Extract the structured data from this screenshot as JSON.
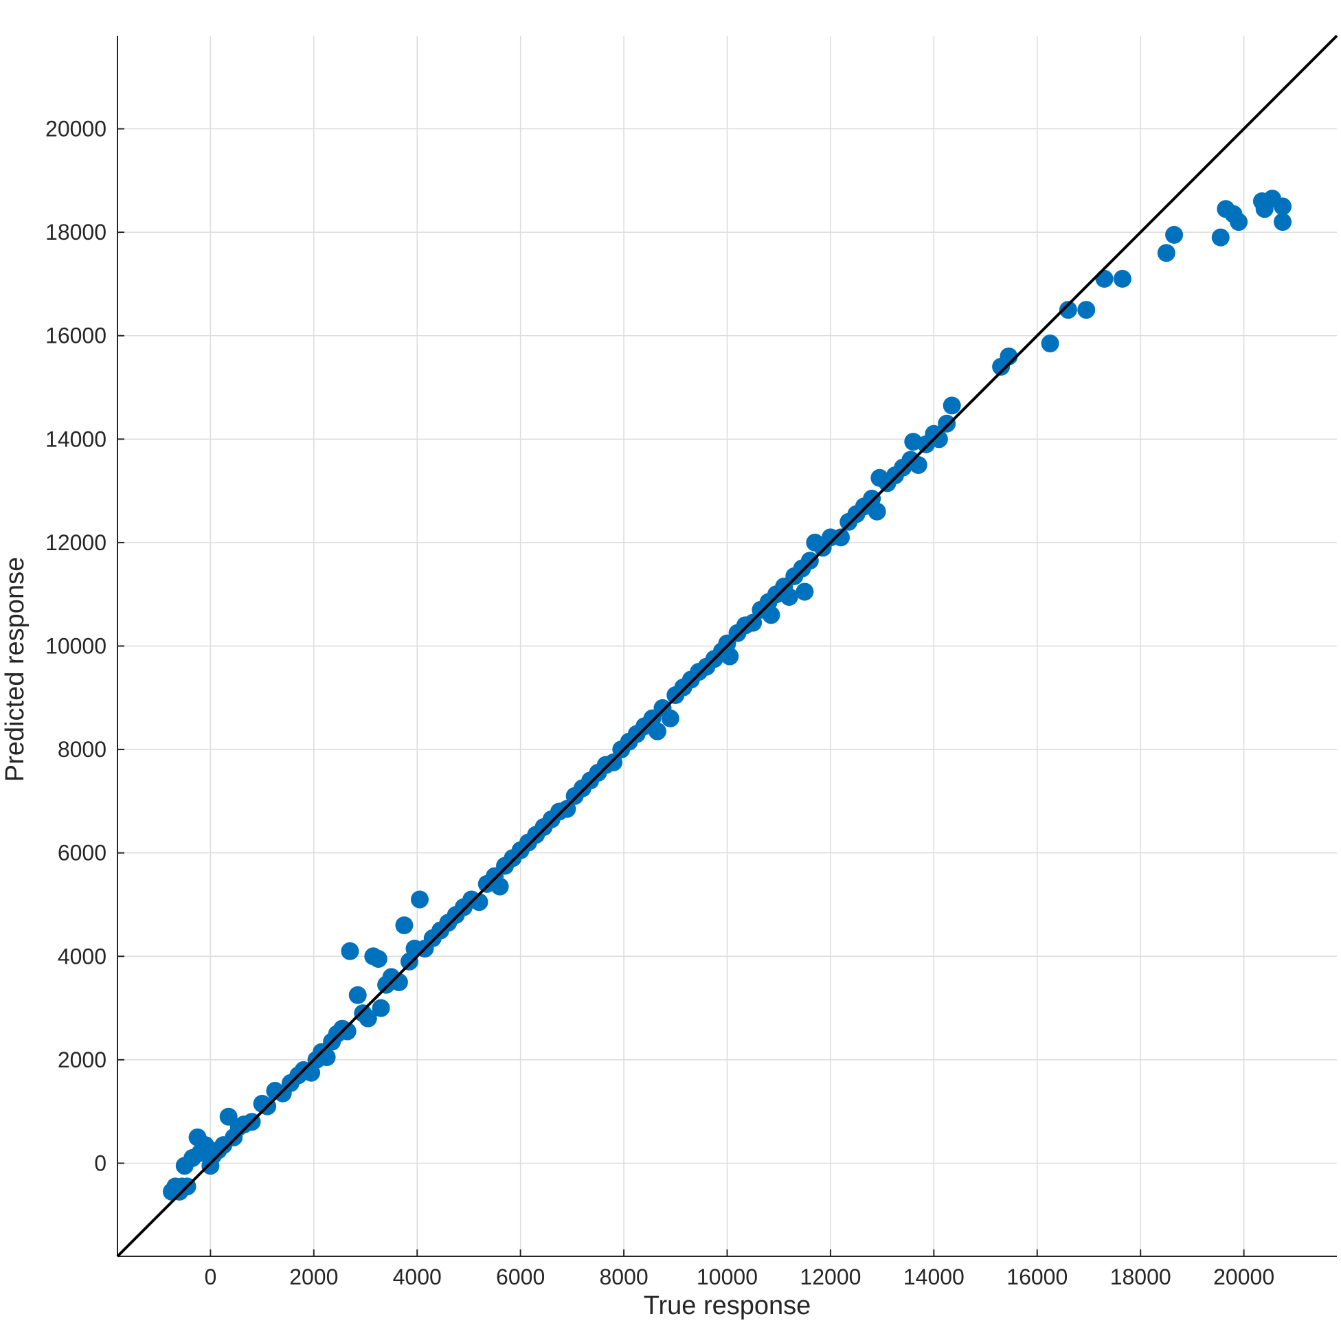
{
  "chart_data": {
    "type": "scatter",
    "title": "",
    "xlabel": "True response",
    "ylabel": "Predicted response",
    "xlim": [
      -1800,
      21800
    ],
    "ylim": [
      -1800,
      21800
    ],
    "xticks": [
      0,
      2000,
      4000,
      6000,
      8000,
      10000,
      12000,
      14000,
      16000,
      18000,
      20000
    ],
    "yticks": [
      0,
      2000,
      4000,
      6000,
      8000,
      10000,
      12000,
      14000,
      16000,
      18000,
      20000
    ],
    "xtick_labels": [
      "0",
      "2000",
      "4000",
      "6000",
      "8000",
      "10000",
      "12000",
      "14000",
      "16000",
      "18000",
      "20000"
    ],
    "ytick_labels": [
      "0",
      "2000",
      "4000",
      "6000",
      "8000",
      "10000",
      "12000",
      "14000",
      "16000",
      "18000",
      "20000"
    ],
    "grid": true,
    "colors": {
      "points": "#0072BD",
      "reference_line": "#000000"
    },
    "reference_line": {
      "x": [
        -1800,
        21800
      ],
      "y": [
        -1800,
        21800
      ]
    },
    "series": [
      {
        "points": [
          [
            -750,
            -550
          ],
          [
            -680,
            -450
          ],
          [
            -600,
            -550
          ],
          [
            -550,
            -450
          ],
          [
            -500,
            -50
          ],
          [
            -450,
            -450
          ],
          [
            -350,
            100
          ],
          [
            -250,
            500
          ],
          [
            -200,
            200
          ],
          [
            -100,
            350
          ],
          [
            0,
            -50
          ],
          [
            50,
            150
          ],
          [
            150,
            250
          ],
          [
            250,
            350
          ],
          [
            350,
            900
          ],
          [
            450,
            500
          ],
          [
            550,
            700
          ],
          [
            650,
            750
          ],
          [
            800,
            800
          ],
          [
            1000,
            1150
          ],
          [
            1100,
            1100
          ],
          [
            1250,
            1400
          ],
          [
            1400,
            1350
          ],
          [
            1550,
            1550
          ],
          [
            1700,
            1700
          ],
          [
            1800,
            1800
          ],
          [
            1950,
            1750
          ],
          [
            2050,
            2000
          ],
          [
            2150,
            2150
          ],
          [
            2250,
            2050
          ],
          [
            2350,
            2350
          ],
          [
            2450,
            2500
          ],
          [
            2550,
            2600
          ],
          [
            2650,
            2550
          ],
          [
            2700,
            4100
          ],
          [
            2850,
            3250
          ],
          [
            2950,
            2900
          ],
          [
            3050,
            2800
          ],
          [
            3150,
            4000
          ],
          [
            3250,
            3950
          ],
          [
            3300,
            3000
          ],
          [
            3400,
            3450
          ],
          [
            3500,
            3600
          ],
          [
            3650,
            3500
          ],
          [
            3750,
            4600
          ],
          [
            3850,
            3900
          ],
          [
            3950,
            4150
          ],
          [
            4050,
            5100
          ],
          [
            4150,
            4150
          ],
          [
            4300,
            4350
          ],
          [
            4450,
            4500
          ],
          [
            4600,
            4650
          ],
          [
            4750,
            4800
          ],
          [
            4900,
            4950
          ],
          [
            5050,
            5100
          ],
          [
            5200,
            5050
          ],
          [
            5350,
            5400
          ],
          [
            5500,
            5550
          ],
          [
            5600,
            5350
          ],
          [
            5700,
            5750
          ],
          [
            5850,
            5900
          ],
          [
            6000,
            6050
          ],
          [
            6150,
            6200
          ],
          [
            6300,
            6350
          ],
          [
            6450,
            6500
          ],
          [
            6600,
            6650
          ],
          [
            6750,
            6800
          ],
          [
            6900,
            6850
          ],
          [
            7050,
            7100
          ],
          [
            7200,
            7250
          ],
          [
            7350,
            7400
          ],
          [
            7500,
            7550
          ],
          [
            7650,
            7700
          ],
          [
            7800,
            7750
          ],
          [
            7950,
            8000
          ],
          [
            8100,
            8150
          ],
          [
            8250,
            8300
          ],
          [
            8400,
            8450
          ],
          [
            8550,
            8600
          ],
          [
            8650,
            8350
          ],
          [
            8750,
            8800
          ],
          [
            8900,
            8600
          ],
          [
            9000,
            9050
          ],
          [
            9150,
            9200
          ],
          [
            9300,
            9350
          ],
          [
            9450,
            9500
          ],
          [
            9600,
            9600
          ],
          [
            9750,
            9750
          ],
          [
            9900,
            9900
          ],
          [
            10000,
            10050
          ],
          [
            10050,
            9800
          ],
          [
            10200,
            10250
          ],
          [
            10350,
            10400
          ],
          [
            10500,
            10450
          ],
          [
            10650,
            10700
          ],
          [
            10800,
            10850
          ],
          [
            10850,
            10600
          ],
          [
            10950,
            11000
          ],
          [
            11100,
            11150
          ],
          [
            11200,
            10950
          ],
          [
            11300,
            11350
          ],
          [
            11450,
            11500
          ],
          [
            11500,
            11050
          ],
          [
            11600,
            11650
          ],
          [
            11700,
            12000
          ],
          [
            11850,
            11900
          ],
          [
            12000,
            12100
          ],
          [
            12200,
            12100
          ],
          [
            12350,
            12400
          ],
          [
            12500,
            12550
          ],
          [
            12650,
            12700
          ],
          [
            12800,
            12850
          ],
          [
            12900,
            12600
          ],
          [
            12950,
            13250
          ],
          [
            13100,
            13150
          ],
          [
            13250,
            13300
          ],
          [
            13400,
            13450
          ],
          [
            13550,
            13600
          ],
          [
            13600,
            13950
          ],
          [
            13700,
            13500
          ],
          [
            13850,
            13900
          ],
          [
            14000,
            14100
          ],
          [
            14100,
            14000
          ],
          [
            14250,
            14300
          ],
          [
            14350,
            14650
          ],
          [
            15300,
            15400
          ],
          [
            15450,
            15600
          ],
          [
            16250,
            15850
          ],
          [
            16600,
            16500
          ],
          [
            16950,
            16500
          ],
          [
            17300,
            17100
          ],
          [
            17650,
            17100
          ],
          [
            18500,
            17600
          ],
          [
            18650,
            17950
          ],
          [
            19550,
            17900
          ],
          [
            19650,
            18450
          ],
          [
            19800,
            18350
          ],
          [
            19900,
            18200
          ],
          [
            20350,
            18600
          ],
          [
            20400,
            18450
          ],
          [
            20550,
            18650
          ],
          [
            20750,
            18500
          ],
          [
            20750,
            18200
          ]
        ]
      }
    ]
  }
}
